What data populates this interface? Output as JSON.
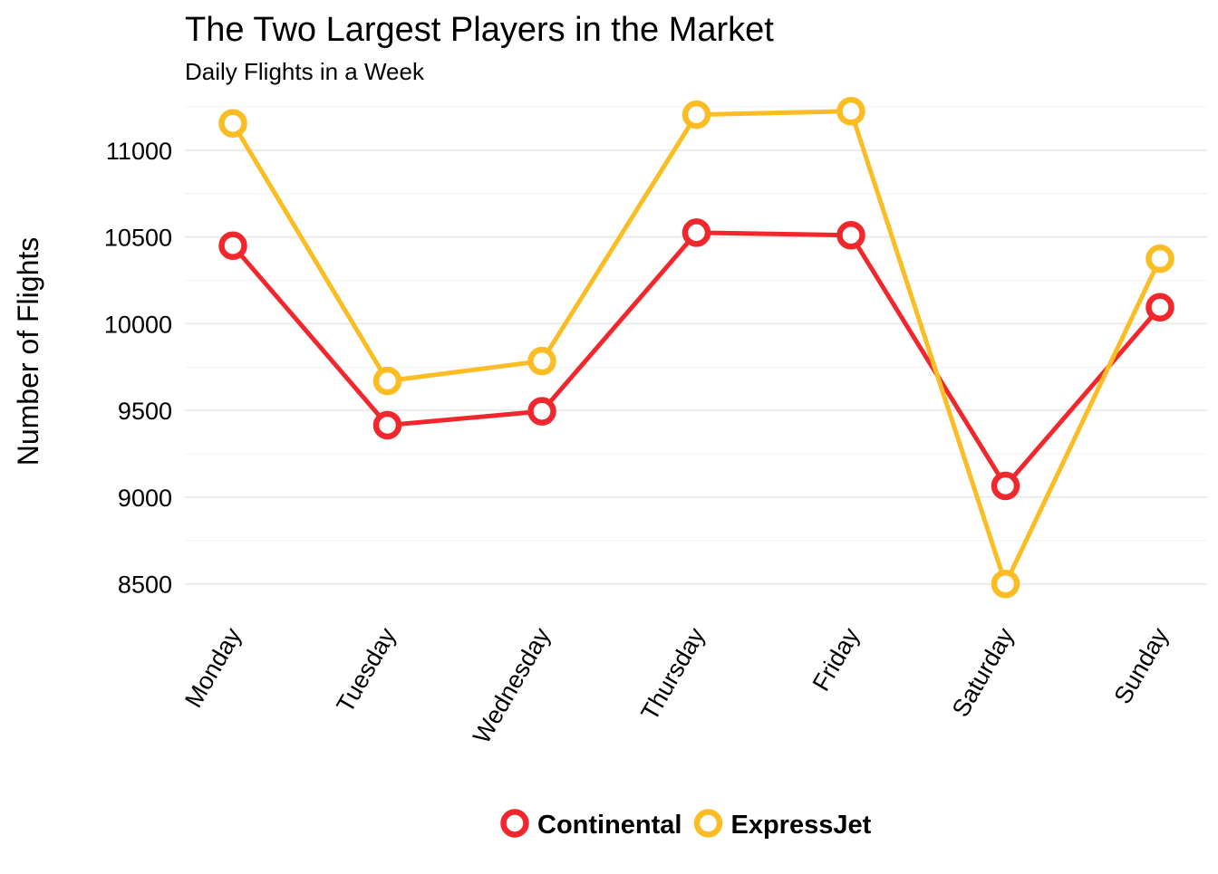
{
  "chart_data": {
    "type": "line",
    "title": "The Two Largest Players in the Market",
    "subtitle": "Daily Flights in a Week",
    "xlabel": "",
    "ylabel": "Number of Flights",
    "categories": [
      "Monday",
      "Tuesday",
      "Wednesday",
      "Thursday",
      "Friday",
      "Saturday",
      "Sunday"
    ],
    "y_ticks": [
      "8500",
      "9000",
      "9500",
      "10000",
      "10500",
      "11000"
    ],
    "ylim": [
      8300,
      11250
    ],
    "grid": true,
    "legend_position": "bottom",
    "series": [
      {
        "name": "Continental",
        "color": "#f0282d",
        "values": [
          10450,
          9415,
          9495,
          10525,
          10510,
          9065,
          10095
        ]
      },
      {
        "name": "ExpressJet",
        "color": "#fbbd23",
        "values": [
          11155,
          9670,
          9785,
          11205,
          11225,
          8500,
          10375
        ]
      }
    ]
  }
}
